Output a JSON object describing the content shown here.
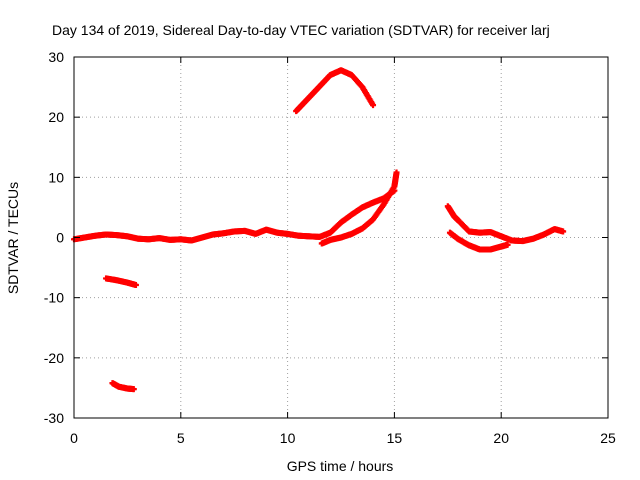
{
  "chart_data": {
    "type": "scatter",
    "title": "Day 134 of 2019, Sidereal Day-to-day VTEC variation (SDTVAR) for receiver larj",
    "xlabel": "GPS time / hours",
    "ylabel": "SDTVAR / TECUs",
    "xlim": [
      0,
      25
    ],
    "ylim": [
      -30,
      30
    ],
    "x_ticks": [
      0,
      5,
      10,
      15,
      20,
      25
    ],
    "y_ticks": [
      -30,
      -20,
      -10,
      0,
      10,
      20,
      30
    ],
    "x_tick_labels": [
      "0",
      "5",
      "10",
      "15",
      "20",
      "25"
    ],
    "y_tick_labels": [
      "-30",
      "-20",
      "-10",
      "0",
      "10",
      "20",
      "30"
    ],
    "grid": true,
    "marker": "+",
    "series_color": "#ff0000",
    "series": [
      {
        "name": "main-baseline",
        "points": [
          [
            0,
            -0.3
          ],
          [
            0.5,
            0
          ],
          [
            1,
            0.3
          ],
          [
            1.5,
            0.5
          ],
          [
            2,
            0.4
          ],
          [
            2.5,
            0.2
          ],
          [
            3,
            -0.2
          ],
          [
            3.5,
            -0.3
          ],
          [
            4,
            -0.1
          ],
          [
            4.5,
            -0.4
          ],
          [
            5,
            -0.3
          ],
          [
            5.5,
            -0.5
          ],
          [
            6,
            0
          ],
          [
            6.5,
            0.5
          ],
          [
            7,
            0.7
          ],
          [
            7.5,
            1.0
          ],
          [
            8,
            1.1
          ],
          [
            8.5,
            0.6
          ],
          [
            9,
            1.3
          ],
          [
            9.5,
            0.8
          ],
          [
            10,
            0.6
          ],
          [
            10.5,
            0.3
          ],
          [
            11,
            0.2
          ],
          [
            11.5,
            0.1
          ],
          [
            12,
            0.8
          ],
          [
            12.5,
            2.5
          ],
          [
            13,
            3.8
          ],
          [
            13.5,
            5.0
          ],
          [
            14,
            5.8
          ],
          [
            14.5,
            6.5
          ],
          [
            15,
            7.8
          ]
        ]
      },
      {
        "name": "lower-branch",
        "points": [
          [
            11.6,
            -1.0
          ],
          [
            12,
            -0.4
          ],
          [
            12.5,
            0
          ],
          [
            13,
            0.6
          ],
          [
            13.5,
            1.5
          ],
          [
            14,
            3.0
          ],
          [
            14.5,
            5.5
          ],
          [
            15,
            8.5
          ],
          [
            15.1,
            10.8
          ]
        ]
      },
      {
        "name": "upper-arc",
        "points": [
          [
            10.4,
            21
          ],
          [
            10.8,
            22.5
          ],
          [
            11.2,
            24
          ],
          [
            11.6,
            25.5
          ],
          [
            12,
            27
          ],
          [
            12.5,
            27.8
          ],
          [
            13,
            27
          ],
          [
            13.5,
            25
          ],
          [
            14,
            22
          ]
        ]
      },
      {
        "name": "segment-minus-7",
        "points": [
          [
            1.5,
            -6.8
          ],
          [
            2,
            -7.1
          ],
          [
            2.5,
            -7.5
          ],
          [
            2.9,
            -7.9
          ]
        ]
      },
      {
        "name": "segment-minus-25",
        "points": [
          [
            1.8,
            -24.2
          ],
          [
            2.1,
            -24.8
          ],
          [
            2.5,
            -25.1
          ],
          [
            2.8,
            -25.2
          ]
        ]
      },
      {
        "name": "late-cluster",
        "points": [
          [
            17.5,
            5.2
          ],
          [
            17.8,
            3.5
          ],
          [
            18,
            2.8
          ],
          [
            18.5,
            1.0
          ],
          [
            19,
            0.8
          ],
          [
            19.5,
            0.9
          ],
          [
            20,
            0.2
          ],
          [
            20.5,
            -0.5
          ],
          [
            21,
            -0.6
          ],
          [
            21.5,
            -0.2
          ],
          [
            22,
            0.5
          ],
          [
            22.5,
            1.4
          ],
          [
            22.9,
            1.0
          ]
        ]
      },
      {
        "name": "late-low",
        "points": [
          [
            17.6,
            0.8
          ],
          [
            18,
            -0.3
          ],
          [
            18.5,
            -1.3
          ],
          [
            19,
            -2.0
          ],
          [
            19.5,
            -2.0
          ],
          [
            20,
            -1.5
          ],
          [
            20.3,
            -1.2
          ]
        ]
      }
    ]
  }
}
